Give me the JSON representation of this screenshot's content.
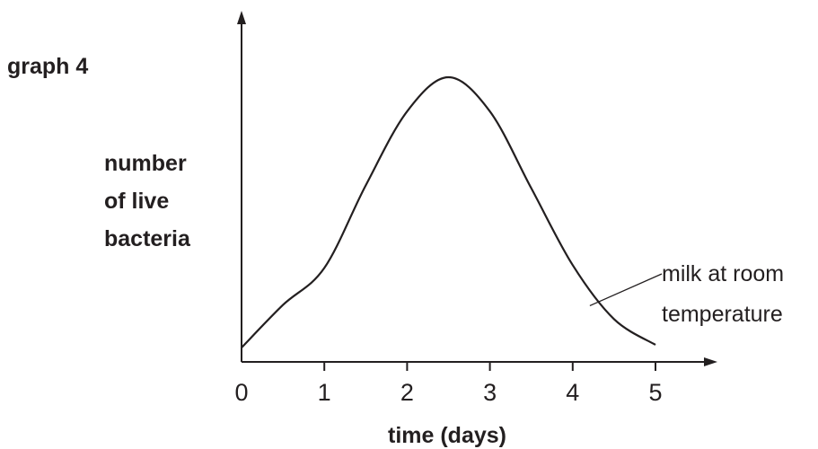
{
  "chart_data": {
    "type": "line",
    "title": "graph 4",
    "xlabel": "time (days)",
    "ylabel_lines": [
      "number",
      "of live",
      "bacteria"
    ],
    "x_ticks": [
      "0",
      "1",
      "2",
      "3",
      "4",
      "5"
    ],
    "xlim": [
      0,
      5
    ],
    "ylim": [
      0,
      100
    ],
    "grid": false,
    "series": [
      {
        "name": "milk at room temperature",
        "x": [
          0,
          0.5,
          1,
          1.5,
          2,
          2.5,
          3,
          3.5,
          4,
          4.5,
          5
        ],
        "y": [
          5,
          20,
          33,
          62,
          88,
          100,
          88,
          61,
          34,
          15,
          6
        ]
      }
    ],
    "annotation": {
      "lines": [
        "milk at room",
        "temperature"
      ],
      "points_to_x": 4.5
    },
    "colors": {
      "ink": "#231f20"
    }
  }
}
